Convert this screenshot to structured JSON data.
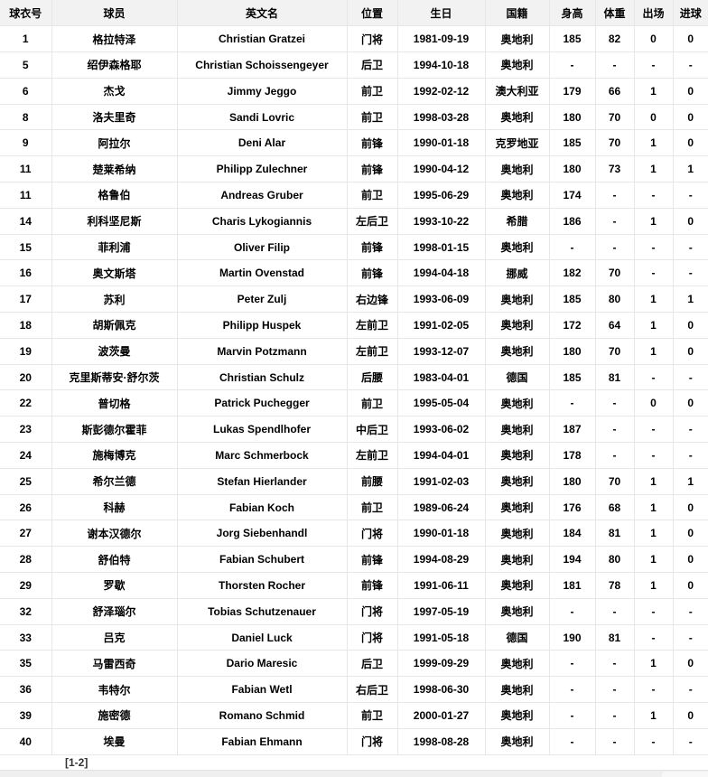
{
  "table": {
    "columns": [
      "球衣号",
      "球员",
      "英文名",
      "位置",
      "生日",
      "国籍",
      "身高",
      "体重",
      "出场",
      "进球"
    ],
    "rows": [
      [
        "1",
        "格拉特泽",
        "Christian Gratzei",
        "门将",
        "1981-09-19",
        "奥地利",
        "185",
        "82",
        "0",
        "0"
      ],
      [
        "5",
        "绍伊森格耶",
        "Christian Schoissengeyer",
        "后卫",
        "1994-10-18",
        "奥地利",
        "-",
        "-",
        "-",
        "-"
      ],
      [
        "6",
        "杰戈",
        "Jimmy Jeggo",
        "前卫",
        "1992-02-12",
        "澳大利亚",
        "179",
        "66",
        "1",
        "0"
      ],
      [
        "8",
        "洛夫里奇",
        "Sandi Lovric",
        "前卫",
        "1998-03-28",
        "奥地利",
        "180",
        "70",
        "0",
        "0"
      ],
      [
        "9",
        "阿拉尔",
        "Deni Alar",
        "前锋",
        "1990-01-18",
        "克罗地亚",
        "185",
        "70",
        "1",
        "0"
      ],
      [
        "11",
        "楚莱希纳",
        "Philipp Zulechner",
        "前锋",
        "1990-04-12",
        "奥地利",
        "180",
        "73",
        "1",
        "1"
      ],
      [
        "11",
        "格鲁伯",
        "Andreas Gruber",
        "前卫",
        "1995-06-29",
        "奥地利",
        "174",
        "-",
        "-",
        "-"
      ],
      [
        "14",
        "利科坚尼斯",
        "Charis Lykogiannis",
        "左后卫",
        "1993-10-22",
        "希腊",
        "186",
        "-",
        "1",
        "0"
      ],
      [
        "15",
        "菲利浦",
        "Oliver Filip",
        "前锋",
        "1998-01-15",
        "奥地利",
        "-",
        "-",
        "-",
        "-"
      ],
      [
        "16",
        "奥文斯塔",
        "Martin Ovenstad",
        "前锋",
        "1994-04-18",
        "挪威",
        "182",
        "70",
        "-",
        "-"
      ],
      [
        "17",
        "苏利",
        "Peter Zulj",
        "右边锋",
        "1993-06-09",
        "奥地利",
        "185",
        "80",
        "1",
        "1"
      ],
      [
        "18",
        "胡斯佩克",
        "Philipp Huspek",
        "左前卫",
        "1991-02-05",
        "奥地利",
        "172",
        "64",
        "1",
        "0"
      ],
      [
        "19",
        "波茨曼",
        "Marvin Potzmann",
        "左前卫",
        "1993-12-07",
        "奥地利",
        "180",
        "70",
        "1",
        "0"
      ],
      [
        "20",
        "克里斯蒂安·舒尔茨",
        "Christian Schulz",
        "后腰",
        "1983-04-01",
        "德国",
        "185",
        "81",
        "-",
        "-"
      ],
      [
        "22",
        "普切格",
        "Patrick Puchegger",
        "前卫",
        "1995-05-04",
        "奥地利",
        "-",
        "-",
        "0",
        "0"
      ],
      [
        "23",
        "斯彭德尔霍菲",
        "Lukas Spendlhofer",
        "中后卫",
        "1993-06-02",
        "奥地利",
        "187",
        "-",
        "-",
        "-"
      ],
      [
        "24",
        "施梅博克",
        "Marc Schmerbock",
        "左前卫",
        "1994-04-01",
        "奥地利",
        "178",
        "-",
        "-",
        "-"
      ],
      [
        "25",
        "希尔兰德",
        "Stefan Hierlander",
        "前腰",
        "1991-02-03",
        "奥地利",
        "180",
        "70",
        "1",
        "1"
      ],
      [
        "26",
        "科赫",
        "Fabian Koch",
        "前卫",
        "1989-06-24",
        "奥地利",
        "176",
        "68",
        "1",
        "0"
      ],
      [
        "27",
        "谢本汉德尔",
        "Jorg Siebenhandl",
        "门将",
        "1990-01-18",
        "奥地利",
        "184",
        "81",
        "1",
        "0"
      ],
      [
        "28",
        "舒伯特",
        "Fabian Schubert",
        "前锋",
        "1994-08-29",
        "奥地利",
        "194",
        "80",
        "1",
        "0"
      ],
      [
        "29",
        "罗歇",
        "Thorsten Rocher",
        "前锋",
        "1991-06-11",
        "奥地利",
        "181",
        "78",
        "1",
        "0"
      ],
      [
        "32",
        "舒泽瑙尔",
        "Tobias Schutzenauer",
        "门将",
        "1997-05-19",
        "奥地利",
        "-",
        "-",
        "-",
        "-"
      ],
      [
        "33",
        "吕克",
        "Daniel Luck",
        "门将",
        "1991-05-18",
        "德国",
        "190",
        "81",
        "-",
        "-"
      ],
      [
        "35",
        "马雷西奇",
        "Dario Maresic",
        "后卫",
        "1999-09-29",
        "奥地利",
        "-",
        "-",
        "1",
        "0"
      ],
      [
        "36",
        "韦特尔",
        "Fabian Wetl",
        "右后卫",
        "1998-06-30",
        "奥地利",
        "-",
        "-",
        "-",
        "-"
      ],
      [
        "39",
        "施密德",
        "Romano Schmid",
        "前卫",
        "2000-01-27",
        "奥地利",
        "-",
        "-",
        "1",
        "0"
      ],
      [
        "40",
        "埃曼",
        "Fabian Ehmann",
        "门将",
        "1998-08-28",
        "奥地利",
        "-",
        "-",
        "-",
        "-"
      ]
    ]
  },
  "pagination": {
    "label": "[1-2]"
  },
  "colors": {
    "header_bg": "#f2f2f2",
    "border": "#e7e7e7",
    "text": "#000000",
    "footer_bg": "#efefef"
  }
}
